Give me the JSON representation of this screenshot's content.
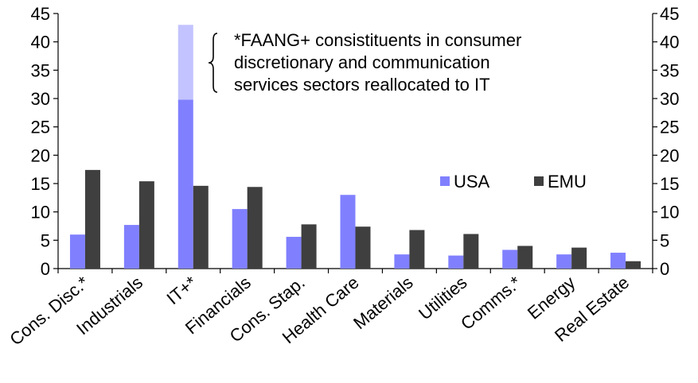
{
  "chart_data": {
    "type": "bar",
    "categories": [
      "Cons. Disc.*",
      "Industrials",
      "IT+*",
      "Financials",
      "Cons. Stap.",
      "Health Care",
      "Materials",
      "Utilities",
      "Comms.*",
      "Energy",
      "Real Estate"
    ],
    "series": [
      {
        "name": "USA",
        "values": [
          6.0,
          7.7,
          29.8,
          10.5,
          5.6,
          13.0,
          2.5,
          2.3,
          3.3,
          2.5,
          2.8
        ]
      },
      {
        "name": "EMU",
        "values": [
          17.4,
          15.4,
          14.6,
          14.4,
          7.8,
          7.4,
          6.8,
          6.1,
          4.0,
          3.7,
          1.3
        ]
      }
    ],
    "stacked_addition": {
      "category": "IT+*",
      "series": "USA",
      "value": 13.2,
      "total": 43.0
    },
    "colors": {
      "USA": "#8080ff",
      "EMU": "#3f3f3f",
      "IT_addition": "#c3c3ff"
    },
    "ylim": [
      0,
      45
    ],
    "yticks": [
      0,
      5,
      10,
      15,
      20,
      25,
      30,
      35,
      40,
      45
    ],
    "xlabel": "",
    "ylabel": "",
    "title": "",
    "legend": {
      "placement": "center-right",
      "entries": [
        "USA",
        "EMU"
      ]
    },
    "annotation": {
      "lines": [
        "*FAANG+ consistituents in consumer",
        "discretionary and communication",
        "services sectors reallocated to IT"
      ]
    },
    "grid": false
  }
}
